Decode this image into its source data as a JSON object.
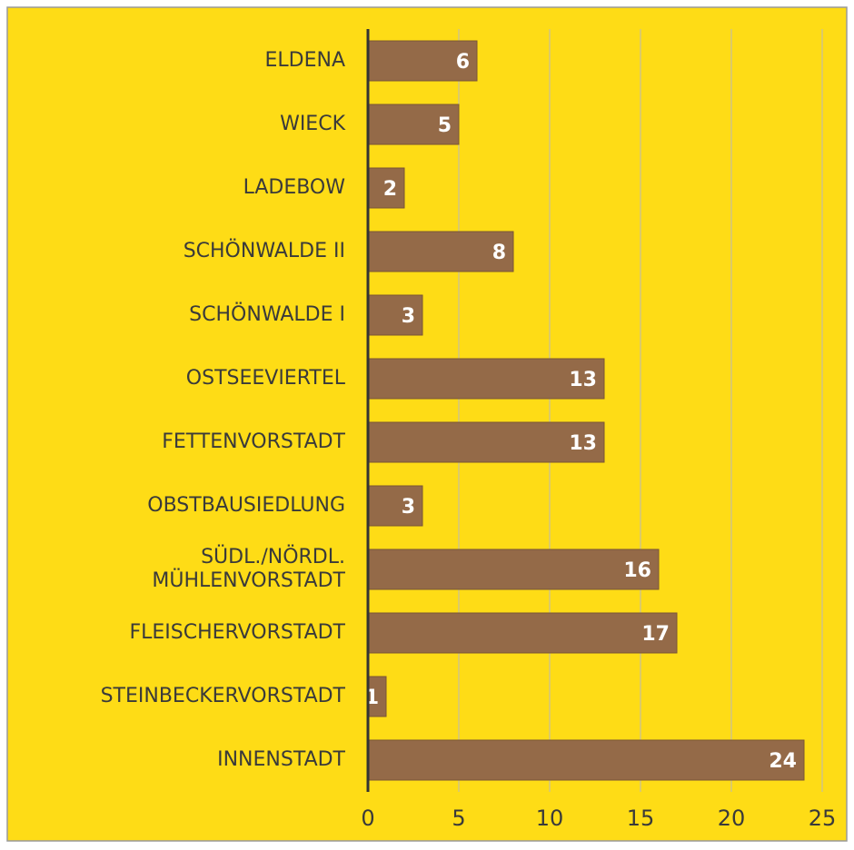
{
  "chart_data": {
    "type": "bar",
    "orientation": "horizontal",
    "categories": [
      "ELDENA",
      "WIECK",
      "LADEBOW",
      "SCHÖNWALDE II",
      "SCHÖNWALDE I",
      "OSTSEEVIERTEL",
      "FETTENVORSTADT",
      "OBSTBAUSIEDLUNG",
      "SÜDL./NÖRDL.\nMÜHLENVORSTADT",
      "FLEISCHERVORSTADT",
      "STEINBECKERVORSTADT",
      "INNENSTADT"
    ],
    "values": [
      6,
      5,
      2,
      8,
      3,
      13,
      13,
      3,
      16,
      17,
      1,
      24
    ],
    "color": "#946a48",
    "background": "#fedc16",
    "xlim": [
      0,
      25
    ],
    "xticks": [
      0,
      5,
      10,
      15,
      20,
      25
    ],
    "grid": true
  }
}
